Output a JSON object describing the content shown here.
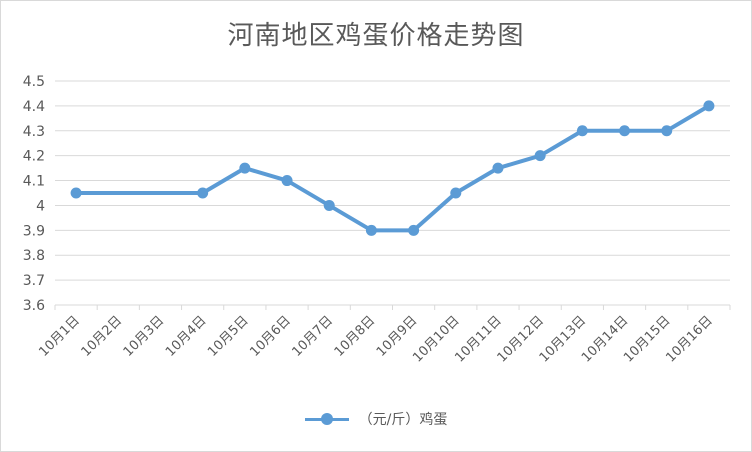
{
  "chart_data": {
    "type": "line",
    "title": "河南地区鸡蛋价格走势图",
    "categories": [
      "10月1日",
      "10月2日",
      "10月3日",
      "10月4日",
      "10月5日",
      "10月6日",
      "10月7日",
      "10月8日",
      "10月9日",
      "10月10日",
      "10月11日",
      "10月12日",
      "10月13日",
      "10月14日",
      "10月15日",
      "10月16日"
    ],
    "series": [
      {
        "name": "（元/斤）鸡蛋",
        "values": [
          4.05,
          null,
          null,
          4.05,
          4.15,
          4.1,
          4.0,
          3.9,
          3.9,
          4.05,
          4.15,
          4.2,
          4.3,
          4.3,
          4.3,
          4.4
        ]
      }
    ],
    "ylim": [
      3.6,
      4.5
    ],
    "yticks": [
      "3.6",
      "3.7",
      "3.8",
      "3.9",
      "4",
      "4.1",
      "4.2",
      "4.3",
      "4.4",
      "4.5"
    ],
    "grid": true,
    "legend_position": "bottom",
    "colors": {
      "series": "#5b9bd5",
      "grid": "#d9d9d9",
      "text": "#595959"
    }
  }
}
